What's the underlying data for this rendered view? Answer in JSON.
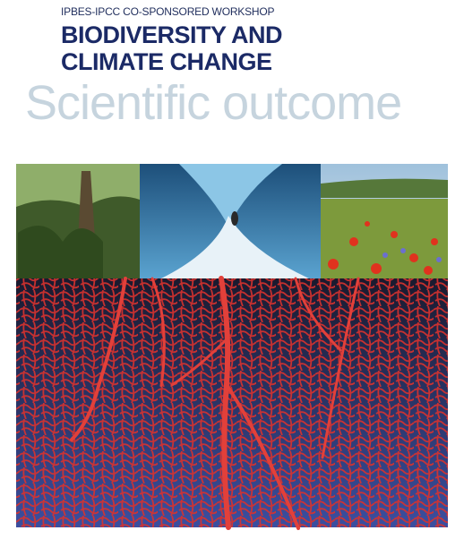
{
  "header": {
    "kicker": "IPBES-IPCC CO-SPONSORED WORKSHOP",
    "title_lines": [
      "BIODIVERSITY AND",
      "CLIMATE CHANGE"
    ],
    "tagline": "Scientific outcome"
  }
}
